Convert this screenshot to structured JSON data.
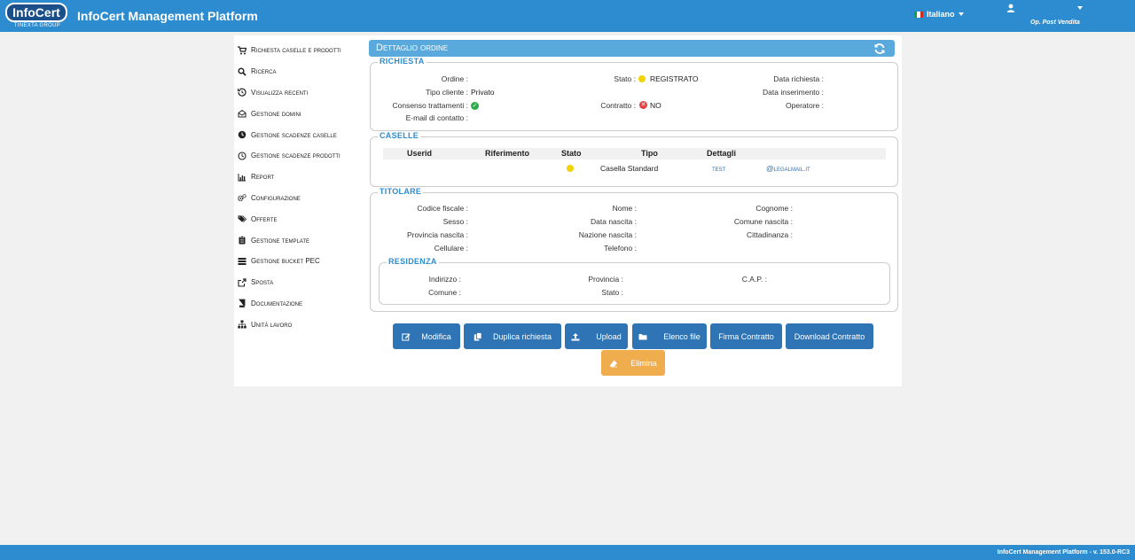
{
  "brand": {
    "logo_text": "InfoCert",
    "logo_sub": "TINEXTA GROUP",
    "app_title": "InfoCert Management Platform"
  },
  "header": {
    "language": "Italiano",
    "user_name": "Op. Post Vendita"
  },
  "sidebar": {
    "items": [
      {
        "label": "Richiesta caselle e prodotti",
        "icon": "cart-icon"
      },
      {
        "label": "Ricerca",
        "icon": "search-icon"
      },
      {
        "label": "Visualizza recenti",
        "icon": "history-icon"
      },
      {
        "label": "Gestione domini",
        "icon": "envelope-open-icon"
      },
      {
        "label": "Gestione scadenze caselle",
        "icon": "clock-filled-icon"
      },
      {
        "label": "Gestione scadenze prodotti",
        "icon": "clock-outline-icon"
      },
      {
        "label": "Report",
        "icon": "bar-chart-icon"
      },
      {
        "label": "Configurazione",
        "icon": "cogs-icon"
      },
      {
        "label": "Offerte",
        "icon": "tags-icon"
      },
      {
        "label": "Gestione template",
        "icon": "clipboard-icon"
      },
      {
        "label": "Gestione bucket PEC",
        "icon": "stack-icon"
      },
      {
        "label": "Sposta",
        "icon": "share-icon"
      },
      {
        "label": "Documentazione",
        "icon": "book-icon"
      },
      {
        "label": "Unità lavoro",
        "icon": "sitemap-icon"
      }
    ]
  },
  "detail": {
    "title": "Dettaglio ordine"
  },
  "richiesta": {
    "legend": "RICHIESTA",
    "ordine_label": "Ordine :",
    "tipo_cliente_label": "Tipo cliente :",
    "tipo_cliente_value": "Privato",
    "consenso_label": "Consenso trattamenti :",
    "email_label": "E-mail di contatto :",
    "stato_label": "Stato :",
    "stato_value": "REGISTRATO",
    "contratto_label": "Contratto :",
    "contratto_value": "NO",
    "data_richiesta_label": "Data richiesta :",
    "data_inserimento_label": "Data inserimento :",
    "operatore_label": "Operatore :"
  },
  "caselle": {
    "legend": "CASELLE",
    "columns": [
      "Userid",
      "Riferimento",
      "Stato",
      "Tipo",
      "Dettagli"
    ],
    "rows": [
      {
        "userid": "",
        "riferimento": "",
        "tipo": "Casella Standard",
        "dettagli_user": "test",
        "dettagli_domain": "@legalmail.it"
      }
    ]
  },
  "titolare": {
    "legend": "TITOLARE",
    "codice_fiscale": "Codice fiscale :",
    "sesso": "Sesso :",
    "provincia_nascita": "Provincia nascita :",
    "cellulare": "Cellulare :",
    "nome": "Nome :",
    "data_nascita": "Data nascita :",
    "nazione_nascita": "Nazione nascita :",
    "telefono": "Telefono :",
    "cognome": "Cognome :",
    "comune_nascita": "Comune nascita :",
    "cittadinanza": "Cittadinanza :"
  },
  "residenza": {
    "legend": "RESIDENZA",
    "indirizzo": "Indirizzo :",
    "comune": "Comune :",
    "provincia": "Provincia :",
    "stato": "Stato :",
    "cap": "C.A.P. :"
  },
  "actions": {
    "modifica": "Modifica",
    "duplica": "Duplica richiesta",
    "upload": "Upload",
    "elenco": "Elenco file",
    "firma": "Firma Contratto",
    "download": "Download Contratto",
    "elimina": "Elimina"
  },
  "footer": {
    "text": "InfoCert Management Platform - v. 153.0-RC3"
  },
  "colors": {
    "primary": "#2d8ccf",
    "button": "#2f74b5",
    "warning": "#f0ad4e",
    "status_registered": "#f2d200"
  }
}
